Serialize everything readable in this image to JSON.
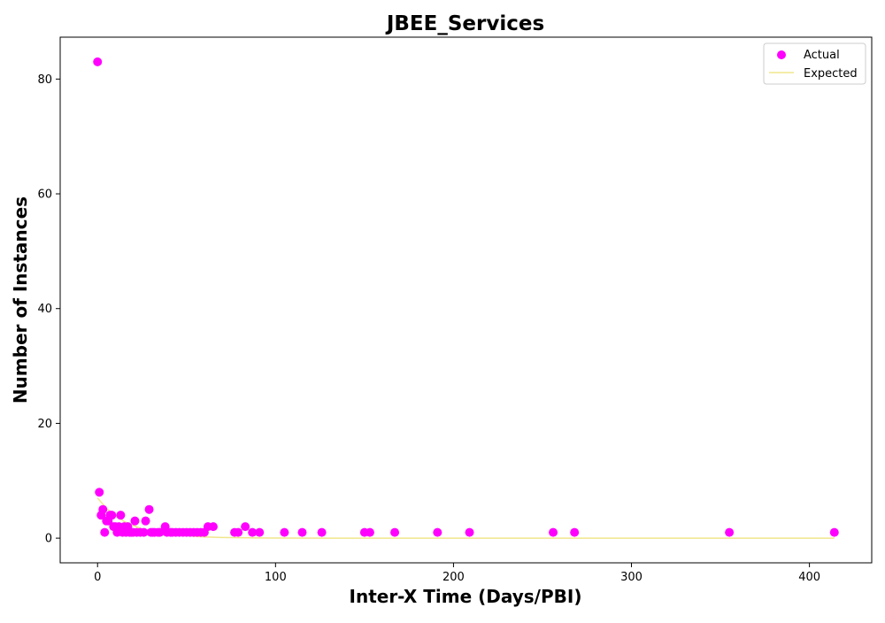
{
  "chart_data": {
    "type": "scatter",
    "title": "JBEE_Services",
    "xlabel": "Inter-X Time (Days/PBI)",
    "ylabel": "Number of Instances",
    "xlim": [
      -21,
      435
    ],
    "ylim": [
      -4.3,
      87.3
    ],
    "xticks": [
      0,
      100,
      200,
      300,
      400
    ],
    "yticks": [
      0,
      20,
      40,
      60,
      80
    ],
    "grid": false,
    "legend_position": "top-right",
    "colors": {
      "actual": "#ff00ff",
      "expected": "#f0e68c"
    },
    "series": [
      {
        "name": "Actual",
        "kind": "scatter",
        "points": [
          [
            0,
            83
          ],
          [
            1,
            8
          ],
          [
            2,
            4
          ],
          [
            3,
            5
          ],
          [
            4,
            1
          ],
          [
            5,
            3
          ],
          [
            6,
            3
          ],
          [
            7,
            4
          ],
          [
            8,
            4
          ],
          [
            9,
            2
          ],
          [
            10,
            2
          ],
          [
            11,
            1
          ],
          [
            12,
            2
          ],
          [
            13,
            4
          ],
          [
            14,
            1
          ],
          [
            15,
            2
          ],
          [
            16,
            1
          ],
          [
            17,
            2
          ],
          [
            18,
            1
          ],
          [
            19,
            1
          ],
          [
            20,
            1
          ],
          [
            21,
            3
          ],
          [
            22,
            1
          ],
          [
            24,
            1
          ],
          [
            26,
            1
          ],
          [
            27,
            3
          ],
          [
            29,
            5
          ],
          [
            30,
            1
          ],
          [
            31,
            1
          ],
          [
            32,
            1
          ],
          [
            34,
            1
          ],
          [
            35,
            1
          ],
          [
            38,
            2
          ],
          [
            39,
            1
          ],
          [
            41,
            1
          ],
          [
            42,
            1
          ],
          [
            44,
            1
          ],
          [
            46,
            1
          ],
          [
            48,
            1
          ],
          [
            50,
            1
          ],
          [
            52,
            1
          ],
          [
            54,
            1
          ],
          [
            56,
            1
          ],
          [
            58,
            1
          ],
          [
            60,
            1
          ],
          [
            62,
            2
          ],
          [
            65,
            2
          ],
          [
            77,
            1
          ],
          [
            79,
            1
          ],
          [
            83,
            2
          ],
          [
            87,
            1
          ],
          [
            91,
            1
          ],
          [
            105,
            1
          ],
          [
            115,
            1
          ],
          [
            126,
            1
          ],
          [
            150,
            1
          ],
          [
            153,
            1
          ],
          [
            167,
            1
          ],
          [
            191,
            1
          ],
          [
            209,
            1
          ],
          [
            256,
            1
          ],
          [
            268,
            1
          ],
          [
            355,
            1
          ],
          [
            414,
            1
          ]
        ]
      },
      {
        "name": "Expected",
        "kind": "line",
        "points": [
          [
            0,
            7.0
          ],
          [
            5,
            5.2
          ],
          [
            10,
            3.9
          ],
          [
            15,
            2.9
          ],
          [
            20,
            2.2
          ],
          [
            25,
            1.6
          ],
          [
            30,
            1.2
          ],
          [
            35,
            0.9
          ],
          [
            40,
            0.7
          ],
          [
            45,
            0.5
          ],
          [
            50,
            0.4
          ],
          [
            55,
            0.3
          ],
          [
            60,
            0.22
          ],
          [
            70,
            0.12
          ],
          [
            80,
            0.07
          ],
          [
            90,
            0.04
          ],
          [
            100,
            0.02
          ],
          [
            130,
            0.003
          ],
          [
            160,
            0.0005
          ],
          [
            200,
            0
          ],
          [
            300,
            0
          ],
          [
            414,
            0
          ]
        ]
      }
    ]
  }
}
